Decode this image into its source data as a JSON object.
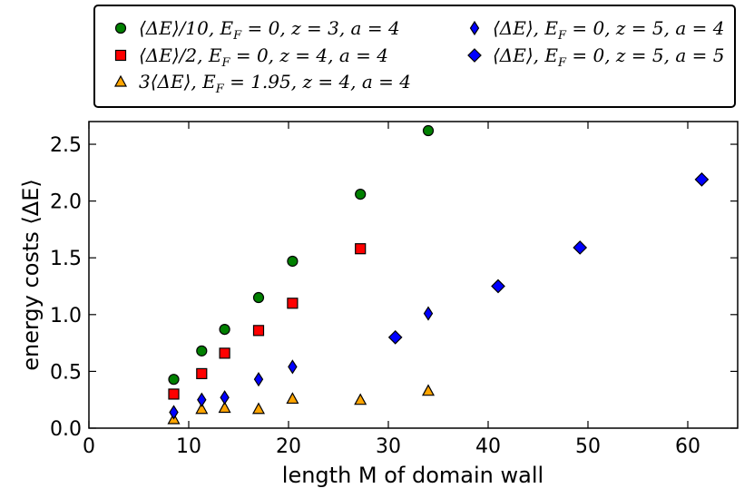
{
  "chart_data": {
    "type": "scatter",
    "title": "",
    "xlabel": "length M of domain wall",
    "ylabel": "energy costs ⟨ΔE⟩",
    "xlim": [
      0,
      65
    ],
    "ylim": [
      0,
      2.7
    ],
    "x_ticks": [
      0,
      10,
      20,
      30,
      40,
      50,
      60
    ],
    "y_ticks": [
      0.0,
      0.5,
      1.0,
      1.5,
      2.0,
      2.5
    ],
    "x_tick_labels": [
      "0",
      "10",
      "20",
      "30",
      "40",
      "50",
      "60"
    ],
    "y_tick_labels": [
      "0.0",
      "0.5",
      "1.0",
      "1.5",
      "2.0",
      "2.5"
    ],
    "grid": false,
    "legend_position": "top",
    "series": [
      {
        "name": "⟨ΔE⟩/10, E_F = 0, z = 3, a = 4",
        "marker": "circle",
        "color": "#008000",
        "x": [
          8.5,
          11.3,
          13.6,
          17.0,
          20.4,
          27.2,
          34.0
        ],
        "y": [
          0.43,
          0.68,
          0.87,
          1.15,
          1.47,
          2.06,
          2.62
        ]
      },
      {
        "name": "⟨ΔE⟩/2, E_F = 0, z = 4, a = 4",
        "marker": "square",
        "color": "#ff0000",
        "x": [
          8.5,
          11.3,
          13.6,
          17.0,
          20.4,
          27.2
        ],
        "y": [
          0.3,
          0.48,
          0.66,
          0.86,
          1.1,
          1.58
        ]
      },
      {
        "name": "3⟨ΔE⟩, E_F = 1.95, z = 4, a = 4",
        "marker": "triangle",
        "color": "#ffa500",
        "x": [
          8.5,
          11.3,
          13.6,
          17.0,
          20.4,
          27.2,
          34.0
        ],
        "y": [
          0.08,
          0.17,
          0.18,
          0.17,
          0.26,
          0.25,
          0.33
        ]
      },
      {
        "name": "⟨ΔE⟩, E_F = 0, z = 5, a = 4",
        "marker": "thin_diamond",
        "color": "#0000ff",
        "x": [
          8.5,
          11.3,
          13.6,
          17.0,
          20.4,
          34.0
        ],
        "y": [
          0.14,
          0.25,
          0.27,
          0.43,
          0.54,
          1.01
        ]
      },
      {
        "name": "⟨ΔE⟩, E_F = 0, z = 5, a = 5",
        "marker": "diamond",
        "color": "#0000ff",
        "x": [
          30.7,
          41.0,
          49.2,
          61.4
        ],
        "y": [
          0.8,
          1.25,
          1.59,
          2.19
        ]
      }
    ],
    "legend_entries": [
      {
        "series": 0,
        "math": "⟨ΔE⟩/10, E",
        "sub": "F",
        "rest": " = 0, z = 3, a = 4"
      },
      {
        "series": 1,
        "math": "⟨ΔE⟩/2, E",
        "sub": "F",
        "rest": " = 0, z = 4, a = 4"
      },
      {
        "series": 2,
        "math": "3⟨ΔE⟩, E",
        "sub": "F",
        "rest": " = 1.95, z = 4, a = 4"
      },
      {
        "series": 3,
        "math": "⟨ΔE⟩, E",
        "sub": "F",
        "rest": " = 0, z = 5, a = 4"
      },
      {
        "series": 4,
        "math": "⟨ΔE⟩, E",
        "sub": "F",
        "rest": " = 0, z = 5, a = 5"
      }
    ]
  }
}
